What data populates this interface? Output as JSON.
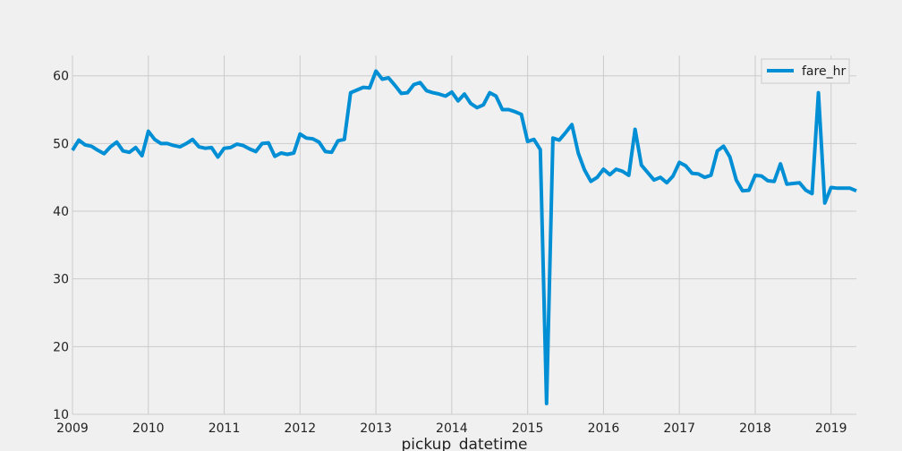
{
  "chart_data": {
    "type": "line",
    "title": "",
    "xlabel": "pickup_datetime",
    "ylabel": "",
    "legend": {
      "placement": "top-right"
    },
    "grid": true,
    "xlim": [
      "2009-01",
      "2019-05"
    ],
    "ylim": [
      10,
      63
    ],
    "xticks": [
      {
        "label": "2009",
        "value": "2009-01"
      },
      {
        "label": "2010",
        "value": "2010-01"
      },
      {
        "label": "2011",
        "value": "2011-01"
      },
      {
        "label": "2012",
        "value": "2012-01"
      },
      {
        "label": "2013",
        "value": "2013-01"
      },
      {
        "label": "2014",
        "value": "2014-01"
      },
      {
        "label": "2015",
        "value": "2015-01"
      },
      {
        "label": "2016",
        "value": "2016-01"
      },
      {
        "label": "2017",
        "value": "2017-01"
      },
      {
        "label": "2018",
        "value": "2018-01"
      },
      {
        "label": "2019",
        "value": "2019-01"
      }
    ],
    "yticks": [
      {
        "label": "10",
        "value": 10
      },
      {
        "label": "20",
        "value": 20
      },
      {
        "label": "30",
        "value": 30
      },
      {
        "label": "40",
        "value": 40
      },
      {
        "label": "50",
        "value": 50
      },
      {
        "label": "60",
        "value": 60
      }
    ],
    "series": [
      {
        "name": "fare_hr",
        "color": "#008fd5",
        "x": [
          "2009-01",
          "2009-02",
          "2009-03",
          "2009-04",
          "2009-05",
          "2009-06",
          "2009-07",
          "2009-08",
          "2009-09",
          "2009-10",
          "2009-11",
          "2009-12",
          "2010-01",
          "2010-02",
          "2010-03",
          "2010-04",
          "2010-05",
          "2010-06",
          "2010-07",
          "2010-08",
          "2010-09",
          "2010-10",
          "2010-11",
          "2010-12",
          "2011-01",
          "2011-02",
          "2011-03",
          "2011-04",
          "2011-05",
          "2011-06",
          "2011-07",
          "2011-08",
          "2011-09",
          "2011-10",
          "2011-11",
          "2011-12",
          "2012-01",
          "2012-02",
          "2012-03",
          "2012-04",
          "2012-05",
          "2012-06",
          "2012-07",
          "2012-08",
          "2012-09",
          "2012-10",
          "2012-11",
          "2012-12",
          "2013-01",
          "2013-02",
          "2013-03",
          "2013-04",
          "2013-05",
          "2013-06",
          "2013-07",
          "2013-08",
          "2013-09",
          "2013-10",
          "2013-11",
          "2013-12",
          "2014-01",
          "2014-02",
          "2014-03",
          "2014-04",
          "2014-05",
          "2014-06",
          "2014-07",
          "2014-08",
          "2014-09",
          "2014-10",
          "2014-11",
          "2014-12",
          "2015-01",
          "2015-02",
          "2015-03",
          "2015-04",
          "2015-05",
          "2015-06",
          "2015-07",
          "2015-08",
          "2015-09",
          "2015-10",
          "2015-11",
          "2015-12",
          "2016-01",
          "2016-02",
          "2016-03",
          "2016-04",
          "2016-05",
          "2016-06",
          "2016-07",
          "2016-08",
          "2016-09",
          "2016-10",
          "2016-11",
          "2016-12",
          "2017-01",
          "2017-02",
          "2017-03",
          "2017-04",
          "2017-05",
          "2017-06",
          "2017-07",
          "2017-08",
          "2017-09",
          "2017-10",
          "2017-11",
          "2017-12",
          "2018-01",
          "2018-02",
          "2018-03",
          "2018-04",
          "2018-05",
          "2018-06",
          "2018-07",
          "2018-08",
          "2018-09",
          "2018-10",
          "2018-11",
          "2018-12",
          "2019-01",
          "2019-02",
          "2019-03",
          "2019-04",
          "2019-05"
        ],
        "values": [
          49.0,
          50.5,
          49.8,
          49.6,
          49.0,
          48.5,
          49.5,
          50.2,
          48.9,
          48.7,
          49.4,
          48.2,
          51.8,
          50.6,
          50.0,
          50.0,
          49.7,
          49.5,
          50.0,
          50.6,
          49.5,
          49.3,
          49.4,
          48.0,
          49.3,
          49.4,
          49.9,
          49.7,
          49.2,
          48.8,
          50.0,
          50.1,
          48.1,
          48.6,
          48.4,
          48.6,
          51.4,
          50.8,
          50.7,
          50.2,
          48.8,
          48.7,
          50.4,
          50.6,
          57.5,
          57.9,
          58.3,
          58.2,
          60.7,
          59.5,
          59.7,
          58.6,
          57.4,
          57.5,
          58.7,
          59.0,
          57.8,
          57.5,
          57.3,
          57.0,
          57.6,
          56.3,
          57.3,
          55.9,
          55.3,
          55.7,
          57.5,
          57.0,
          55.0,
          55.0,
          54.7,
          54.3,
          50.3,
          50.6,
          49.1,
          11.6,
          50.8,
          50.5,
          51.6,
          52.8,
          48.6,
          46.1,
          44.4,
          45.0,
          46.2,
          45.4,
          46.2,
          45.9,
          45.3,
          52.1,
          46.8,
          45.7,
          44.6,
          45.0,
          44.2,
          45.2,
          47.2,
          46.7,
          45.6,
          45.5,
          45.0,
          45.3,
          48.9,
          49.6,
          48.0,
          44.6,
          43.0,
          43.1,
          45.3,
          45.2,
          44.5,
          44.4,
          47.0,
          44.0,
          44.1,
          44.2,
          43.1,
          42.6,
          57.5,
          41.2,
          43.5,
          43.4,
          43.4,
          43.4,
          43.0
        ]
      }
    ]
  }
}
